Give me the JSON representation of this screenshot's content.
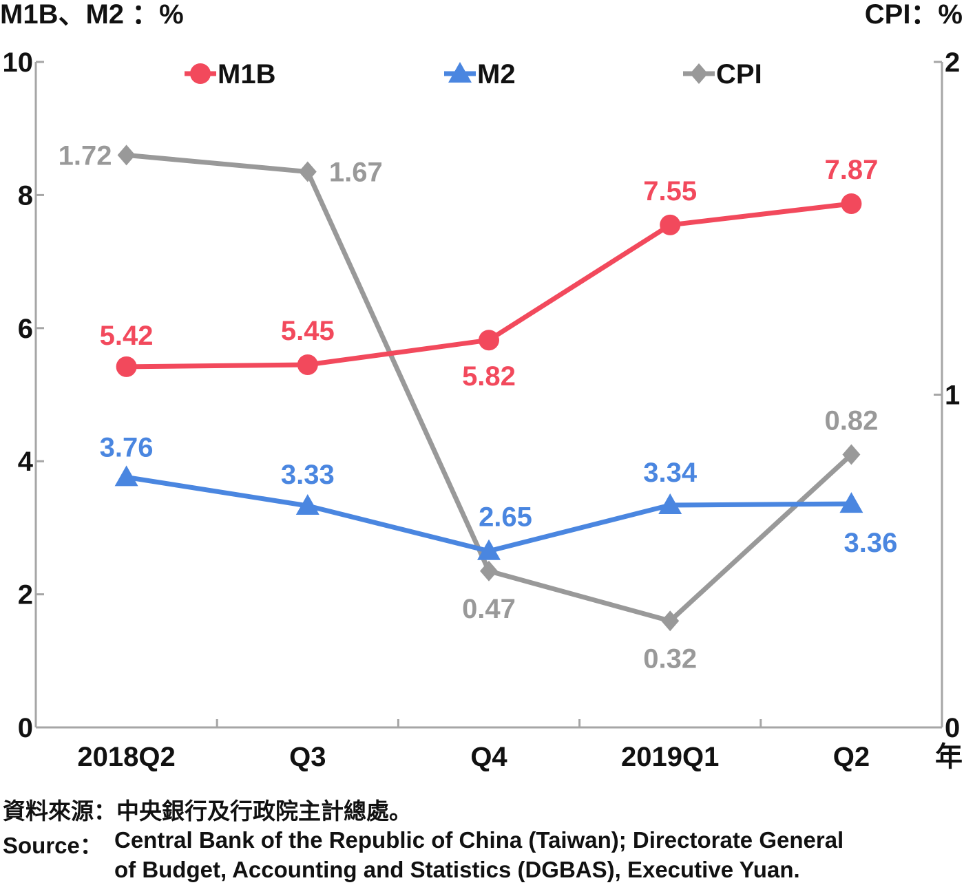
{
  "chart_data": {
    "type": "line",
    "categories": [
      "2018Q2",
      "Q3",
      "Q4",
      "2019Q1",
      "Q2"
    ],
    "xlabel": "年",
    "ylabel_left": "M1B、M2 ：%",
    "ylabel_right": "CPI：%",
    "ylim_left": [
      0,
      10
    ],
    "yticks_left": [
      "0",
      "2",
      "4",
      "6",
      "8",
      "10"
    ],
    "ylim_right": [
      0,
      2
    ],
    "yticks_right": [
      "0",
      "1",
      "2"
    ],
    "grid": false,
    "legend_position": "top",
    "series": [
      {
        "name": "M1B",
        "axis": "left",
        "marker": "circle",
        "color": "#f2495c",
        "values": [
          5.42,
          5.45,
          5.82,
          7.55,
          7.87
        ],
        "labels": [
          "5.42",
          "5.45",
          "5.82",
          "7.55",
          "7.87"
        ]
      },
      {
        "name": "M2",
        "axis": "left",
        "marker": "triangle",
        "color": "#4a86e0",
        "values": [
          3.76,
          3.33,
          2.65,
          3.34,
          3.36
        ],
        "labels": [
          "3.76",
          "3.33",
          "2.65",
          "3.34",
          "3.36"
        ]
      },
      {
        "name": "CPI",
        "axis": "right",
        "marker": "diamond",
        "color": "#999999",
        "values": [
          1.72,
          1.67,
          0.47,
          0.32,
          0.82
        ],
        "labels": [
          "1.72",
          "1.67",
          "0.47",
          "0.32",
          "0.82"
        ]
      }
    ]
  },
  "source": {
    "zh": "資料來源：中央銀行及行政院主計總處。",
    "en_label": "Source：",
    "en_line1": "Central Bank of the Republic of China (Taiwan); Directorate General",
    "en_line2": "of Budget, Accounting and Statistics (DGBAS), Executive Yuan."
  }
}
